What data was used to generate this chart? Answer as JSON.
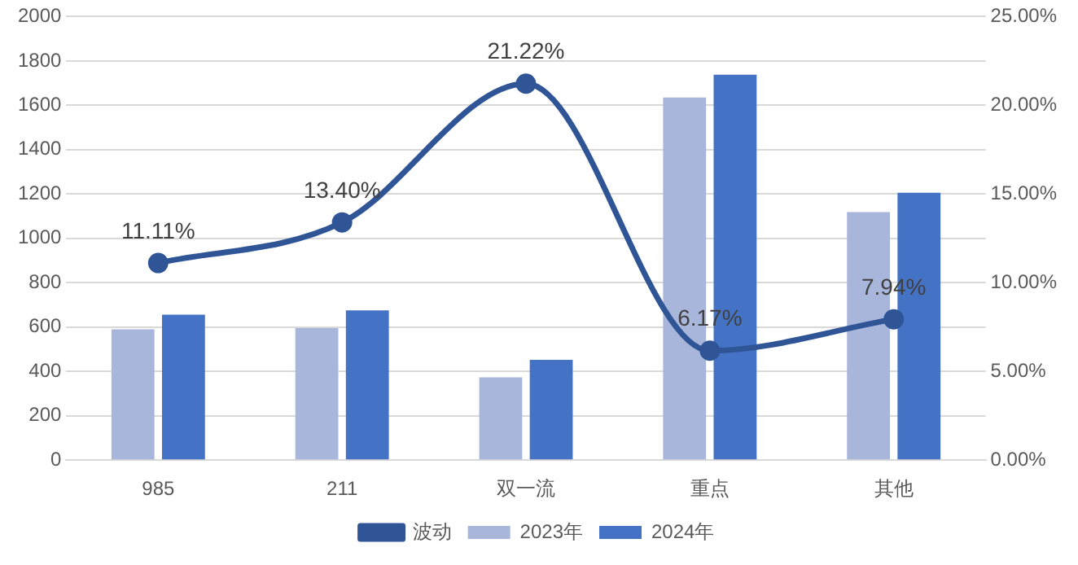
{
  "chart_data": {
    "type": "bar",
    "categories": [
      "985",
      "211",
      "双一流",
      "重点",
      "其他"
    ],
    "series": [
      {
        "name": "2023年",
        "color": "#a9b6dc",
        "values": [
          590,
          595,
          373,
          1635,
          1119
        ]
      },
      {
        "name": "2024年",
        "color": "#4472c4",
        "values": [
          656,
          675,
          452,
          1738,
          1206
        ]
      },
      {
        "name": "波动",
        "type": "line",
        "axis": "y2",
        "color": "#2f5597",
        "marker": "circle",
        "values": [
          11.11,
          13.4,
          21.22,
          6.17,
          7.94
        ],
        "value_labels": [
          "11.11%",
          "13.40%",
          "21.22%",
          "6.17%",
          "7.94%"
        ]
      }
    ],
    "ylim": [
      0,
      2000
    ],
    "yticks": [
      0,
      200,
      400,
      600,
      800,
      1000,
      1200,
      1400,
      1600,
      1800,
      2000
    ],
    "y2lim": [
      0,
      25
    ],
    "y2ticks": [
      {
        "value": 0,
        "label": "0.00%"
      },
      {
        "value": 5,
        "label": "5.00%"
      },
      {
        "value": 10,
        "label": "10.00%"
      },
      {
        "value": 15,
        "label": "15.00%"
      },
      {
        "value": 20,
        "label": "20.00%"
      },
      {
        "value": 25,
        "label": "25.00%"
      }
    ],
    "grid": "y",
    "legend": "bottom"
  }
}
